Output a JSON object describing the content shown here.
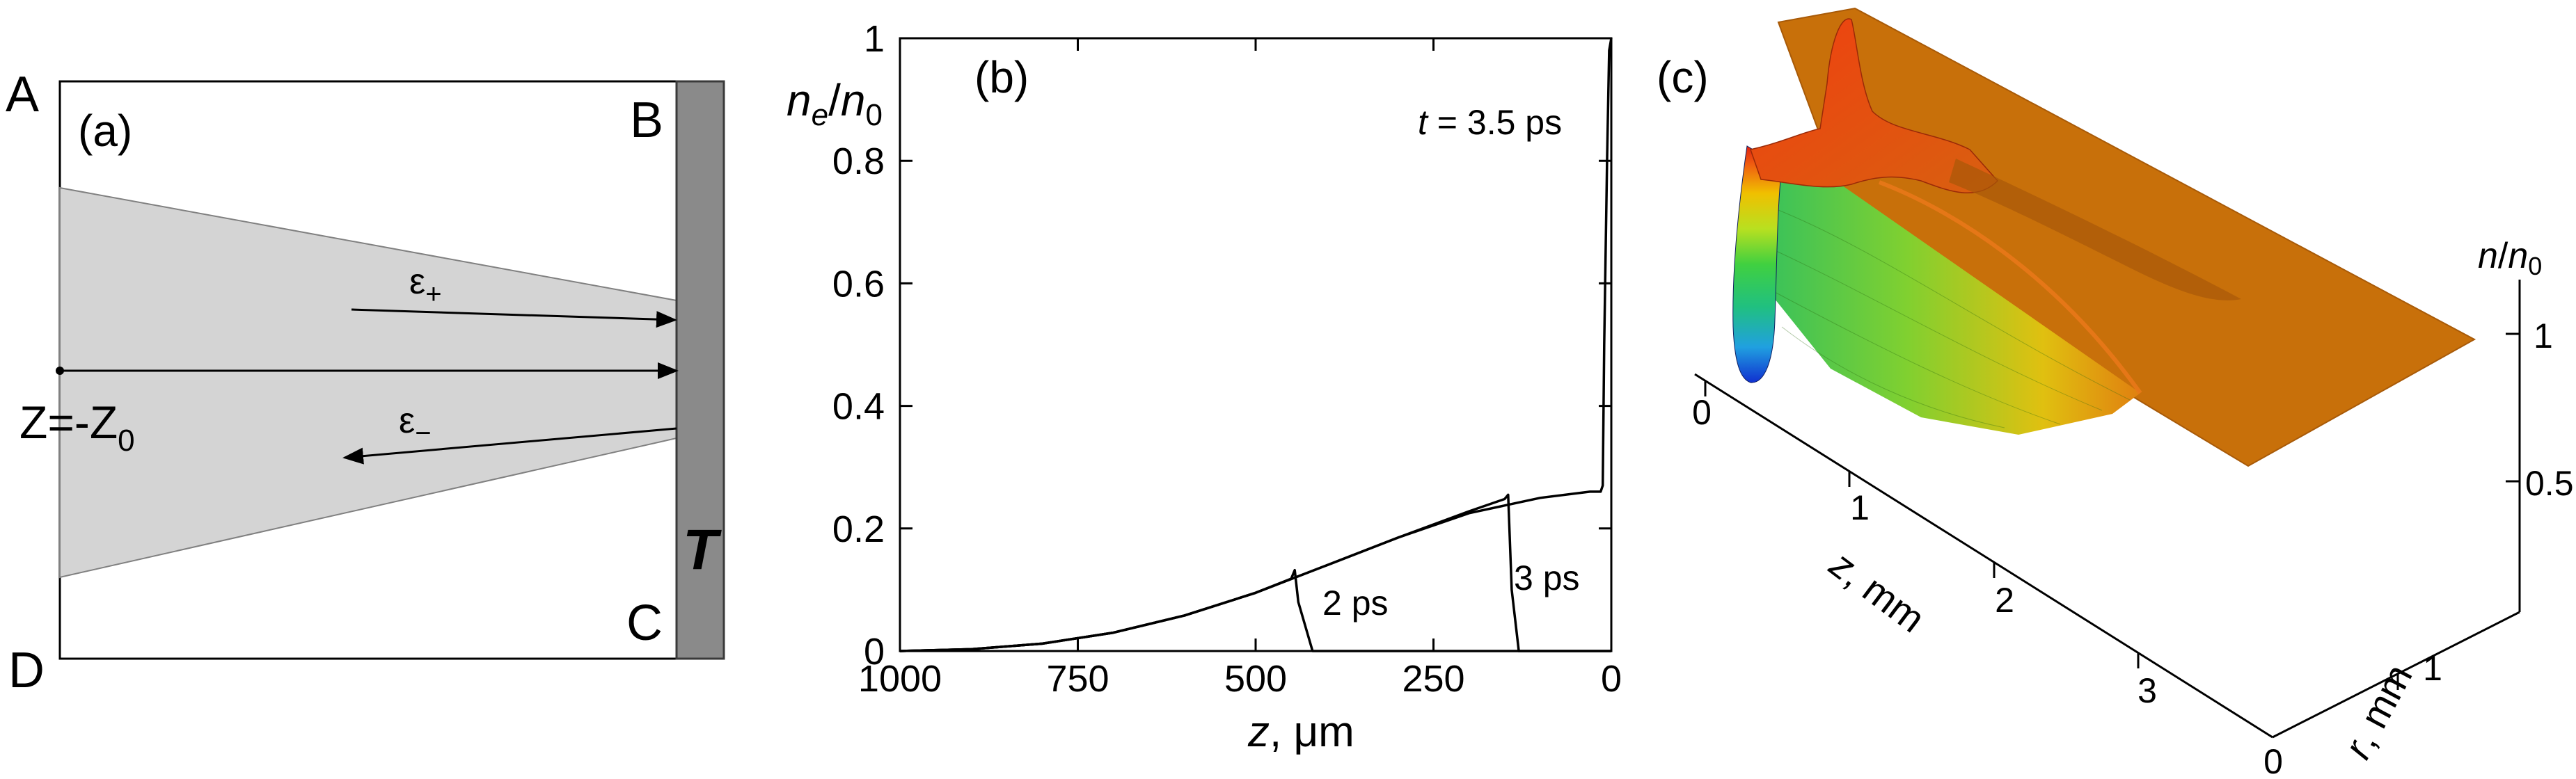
{
  "panel_a": {
    "tag": "(a)",
    "corners": {
      "a": "A",
      "b": "B",
      "c": "C",
      "d": "D"
    },
    "focus": {
      "prefix": "Z=-Z",
      "sub": "0"
    },
    "eps_plus": {
      "base": "ε",
      "sub": "+"
    },
    "eps_minus": {
      "base": "ε",
      "sub": "−"
    },
    "target": "T"
  },
  "panel_b": {
    "tag": "(b)",
    "ylabel": {
      "n": "n",
      "n_sub": "e",
      "slash": "/",
      "n0": "n",
      "n0_sub": "0"
    },
    "xlabel": {
      "z": "z",
      "rest": ", μm"
    },
    "time_labels": {
      "t35": {
        "t": "t",
        "rest": " = 3.5 ps"
      },
      "t2": "2 ps",
      "t3": "3 ps"
    },
    "chart_data": {
      "type": "line",
      "xlabel": "z, μm",
      "ylabel": "ne/n0",
      "xlim": [
        1000,
        0
      ],
      "ylim": [
        0,
        1
      ],
      "xticks": [
        "1000",
        "750",
        "500",
        "250",
        "0"
      ],
      "yticks": [
        "0",
        "0.2",
        "0.4",
        "0.6",
        "0.8",
        "1"
      ],
      "series": [
        {
          "name": "2 ps",
          "x": [
            1000,
            900,
            800,
            700,
            600,
            500,
            450,
            445,
            440,
            420,
            0
          ],
          "y": [
            0.0,
            0.003,
            0.012,
            0.03,
            0.058,
            0.095,
            0.118,
            0.132,
            0.08,
            0.0,
            0.0
          ]
        },
        {
          "name": "3 ps",
          "x": [
            1000,
            900,
            800,
            700,
            600,
            500,
            400,
            300,
            200,
            150,
            145,
            140,
            130,
            0
          ],
          "y": [
            0.0,
            0.003,
            0.012,
            0.03,
            0.058,
            0.095,
            0.14,
            0.185,
            0.228,
            0.248,
            0.255,
            0.1,
            0.0,
            0.0
          ]
        },
        {
          "name": "t = 3.5 ps",
          "x": [
            1000,
            900,
            800,
            700,
            600,
            500,
            400,
            300,
            200,
            100,
            30,
            15,
            12,
            10,
            6,
            3,
            0
          ],
          "y": [
            0.0,
            0.003,
            0.012,
            0.03,
            0.058,
            0.095,
            0.14,
            0.185,
            0.225,
            0.25,
            0.26,
            0.26,
            0.27,
            0.5,
            0.8,
            0.98,
            1.0
          ]
        }
      ]
    }
  },
  "panel_c": {
    "tag": "(c)",
    "zlabel": {
      "n": "n",
      "slash": "/",
      "n0": "n",
      "n0_sub": "0"
    },
    "zticks": [
      "1",
      "0.5"
    ],
    "z_axis_label": {
      "z": "z",
      "rest": ", mm"
    },
    "z_axis_ticks": [
      "0",
      "1",
      "2",
      "3"
    ],
    "r_axis_label": {
      "r": "r",
      "rest": ", mm"
    },
    "r_axis_ticks": [
      "0",
      "1"
    ],
    "colors": {
      "plateau": "#c8700a",
      "peak": "#e02010",
      "trough": "#2050e0"
    }
  }
}
